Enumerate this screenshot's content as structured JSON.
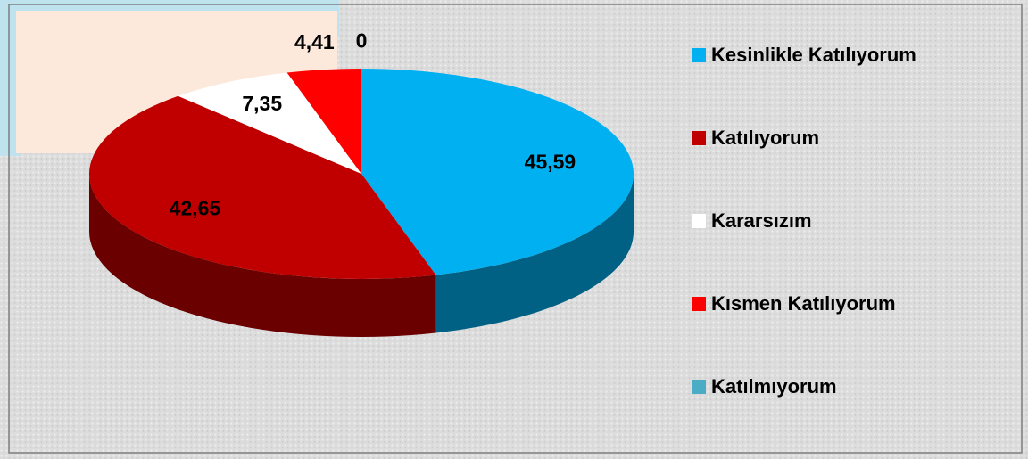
{
  "chart_data": {
    "type": "pie",
    "categories": [
      "Kesinlikle Katılıyorum",
      "Katılıyorum",
      "Kararsızım",
      "Kısmen Katılıyorum",
      "Katılmıyorum"
    ],
    "values": [
      45.59,
      42.65,
      7.35,
      4.41,
      0
    ],
    "value_labels": [
      "45,59",
      "42,65",
      "7,35",
      "4,41",
      "0"
    ],
    "colors": [
      "#00b0f0",
      "#c00000",
      "#ffffff",
      "#ff0000",
      "#4bacc6"
    ],
    "legend": "right"
  }
}
